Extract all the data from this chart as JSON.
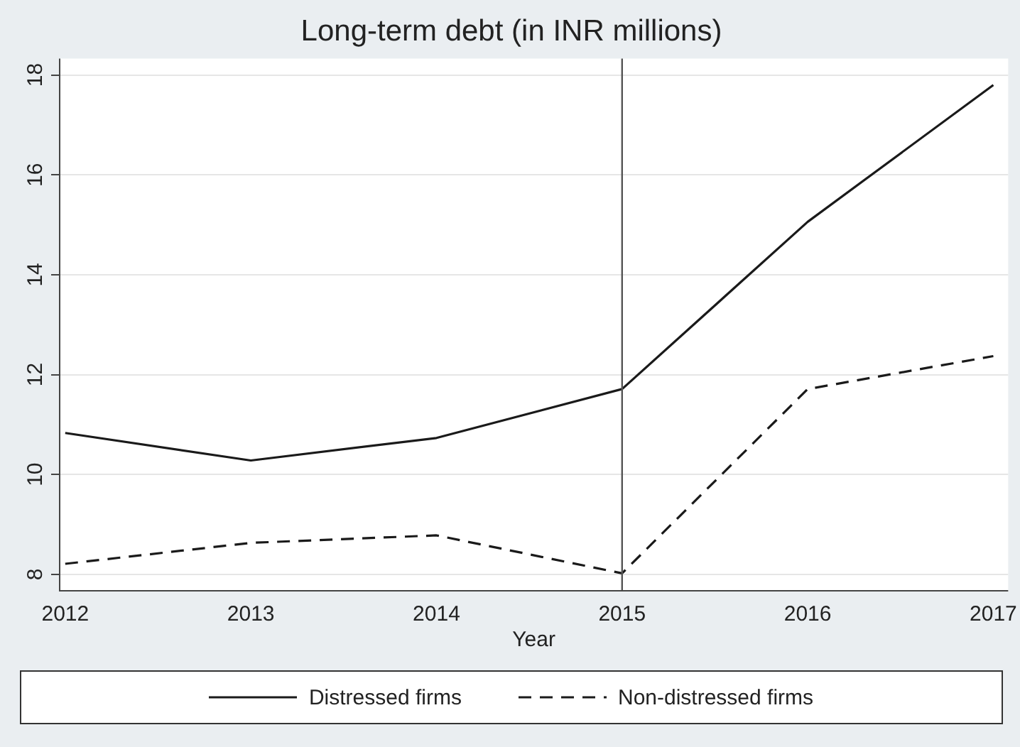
{
  "chart_data": {
    "type": "line",
    "title": "Long-term debt (in INR millions)",
    "xlabel": "Year",
    "x": [
      2012,
      2013,
      2014,
      2015,
      2016,
      2017
    ],
    "series": [
      {
        "name": "Distressed firms",
        "color": "#1a1a1a",
        "line_style": "solid",
        "values": [
          10.83,
          10.28,
          10.73,
          11.71,
          15.06,
          17.8
        ]
      },
      {
        "name": "Non-distressed firms",
        "color": "#1a1a1a",
        "line_style": "dashed",
        "values": [
          8.21,
          8.63,
          8.78,
          8.02,
          11.71,
          12.37
        ]
      }
    ],
    "xlim": [
      2011.97,
      2017.08
    ],
    "xticks": [
      2012,
      2013,
      2014,
      2015,
      2016,
      2017
    ],
    "ylim": [
      7.67,
      18.33
    ],
    "yticks": [
      8,
      10,
      12,
      14,
      16,
      18
    ],
    "ref_lines": [
      {
        "axis": "x",
        "value": 2015,
        "color": "#555555"
      }
    ],
    "grid": "y",
    "legend": "bottom",
    "marker": "none"
  }
}
